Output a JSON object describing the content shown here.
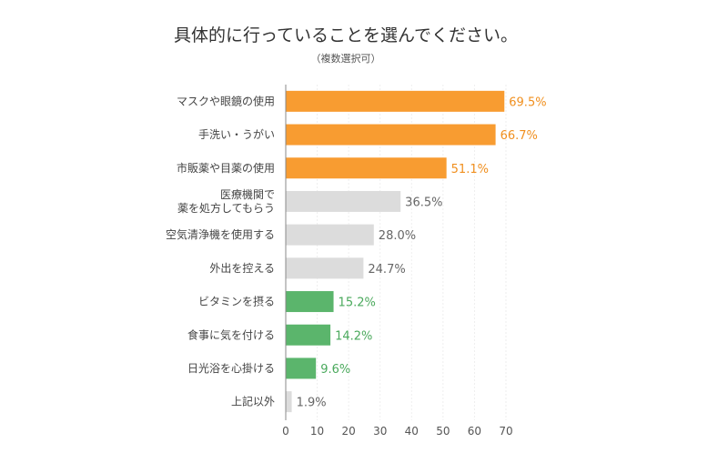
{
  "chart_data": {
    "type": "bar",
    "orientation": "horizontal",
    "title": "具体的に行っていることを選んでください。",
    "subtitle": "（複数選択可）",
    "categories": [
      [
        "マスクや眼鏡の使用"
      ],
      [
        "手洗い・うがい"
      ],
      [
        "市販薬や目薬の使用"
      ],
      [
        "医療機関で",
        "薬を処方してもらう"
      ],
      [
        "空気清浄機を使用する"
      ],
      [
        "外出を控える"
      ],
      [
        "ビタミンを摂る"
      ],
      [
        "食事に気を付ける"
      ],
      [
        "日光浴を心掛ける"
      ],
      [
        "上記以外"
      ]
    ],
    "values": [
      69.5,
      66.7,
      51.1,
      36.5,
      28.0,
      24.7,
      15.2,
      14.2,
      9.6,
      1.9
    ],
    "value_labels": [
      "69.5%",
      "66.7%",
      "51.1%",
      "36.5%",
      "28.0%",
      "24.7%",
      "15.2%",
      "14.2%",
      "9.6%",
      "1.9%"
    ],
    "bar_colors": [
      "#f89c31",
      "#f89c31",
      "#f89c31",
      "#dcdcdc",
      "#dcdcdc",
      "#dcdcdc",
      "#5bb56c",
      "#5bb56c",
      "#5bb56c",
      "#dcdcdc"
    ],
    "label_colors": [
      "#f08f1e",
      "#f08f1e",
      "#f08f1e",
      "#666666",
      "#666666",
      "#666666",
      "#4aa95c",
      "#4aa95c",
      "#4aa95c",
      "#666666"
    ],
    "xlim": [
      0,
      70
    ],
    "xticks": [
      "0",
      "10",
      "20",
      "30",
      "40",
      "50",
      "60",
      "70"
    ],
    "grid": true
  }
}
